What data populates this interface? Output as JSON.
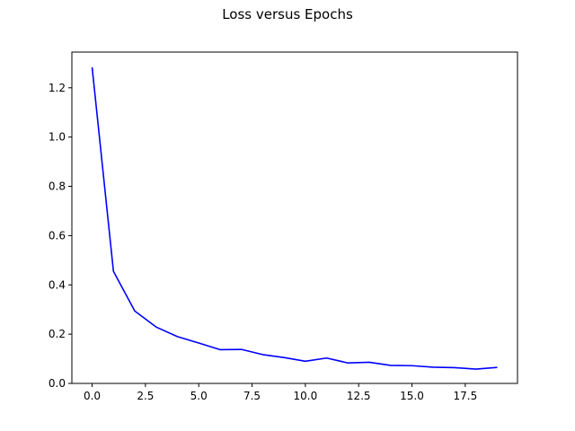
{
  "chart_data": {
    "type": "line",
    "title": "Loss versus Epochs",
    "xlabel": "",
    "ylabel": "",
    "xlim": [
      -0.95,
      19.95
    ],
    "ylim": [
      0.0,
      1.345
    ],
    "xticks": [
      0.0,
      2.5,
      5.0,
      7.5,
      10.0,
      12.5,
      15.0,
      17.5
    ],
    "xtick_labels": [
      "0.0",
      "2.5",
      "5.0",
      "7.5",
      "10.0",
      "12.5",
      "15.0",
      "17.5"
    ],
    "yticks": [
      0.0,
      0.2,
      0.4,
      0.6,
      0.8,
      1.0,
      1.2
    ],
    "ytick_labels": [
      "0.0",
      "0.2",
      "0.4",
      "0.6",
      "0.8",
      "1.0",
      "1.2"
    ],
    "grid": false,
    "series": [
      {
        "color": "#0000ff",
        "x": [
          0,
          1,
          2,
          3,
          4,
          5,
          6,
          7,
          8,
          9,
          10,
          11,
          12,
          13,
          14,
          15,
          16,
          17,
          18,
          19
        ],
        "y": [
          1.283,
          0.455,
          0.294,
          0.229,
          0.19,
          0.164,
          0.137,
          0.138,
          0.117,
          0.105,
          0.09,
          0.103,
          0.083,
          0.086,
          0.073,
          0.072,
          0.066,
          0.064,
          0.058,
          0.065
        ]
      }
    ]
  }
}
